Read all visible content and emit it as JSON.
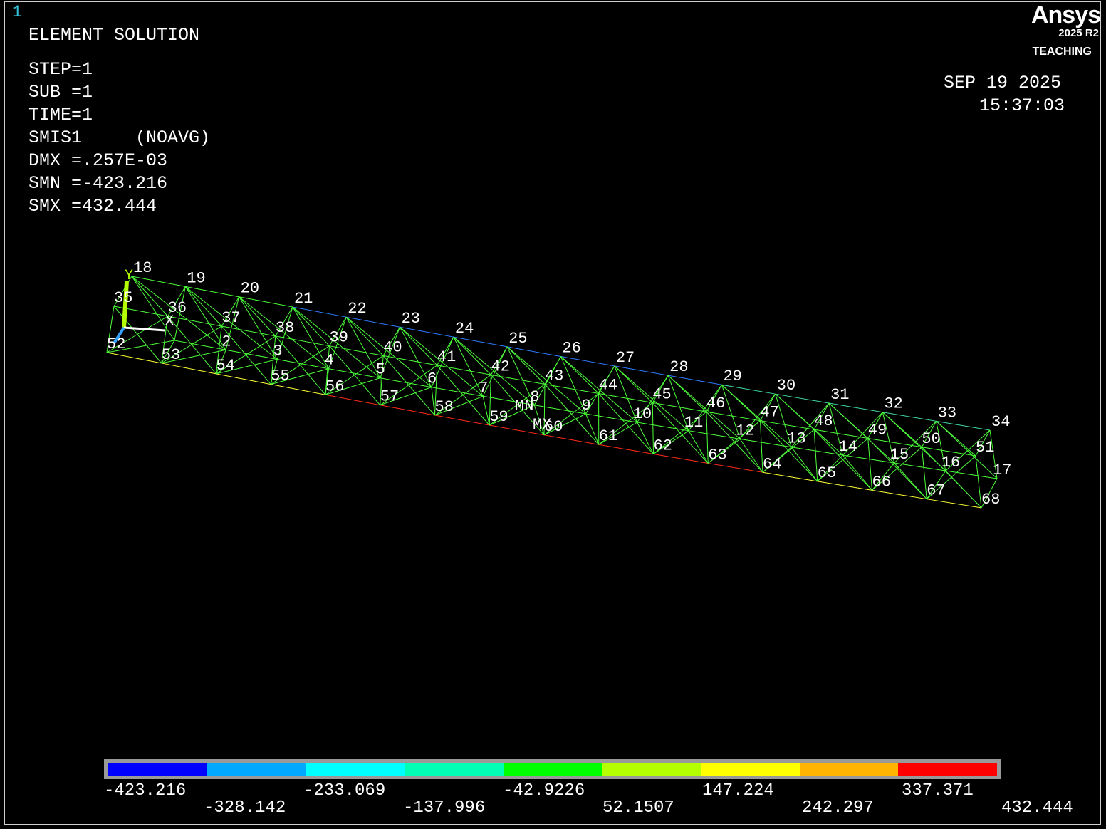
{
  "window_number": "1",
  "logo": {
    "brand": "Ansys",
    "version": "2025 R2",
    "edition": "TEACHING"
  },
  "header": {
    "title": "ELEMENT SOLUTION",
    "step": "STEP=1",
    "sub": "SUB =1",
    "time": "TIME=1",
    "item": "SMIS1     (NOAVG)",
    "dmx": "DMX =.257E-03",
    "smn": "SMN =-423.216",
    "smx": "SMX =432.444"
  },
  "datetime": {
    "date": "SEP 19 2025",
    "time": "15:37:03"
  },
  "markers": {
    "min": "MN",
    "max": "MX"
  },
  "axis_labels": {
    "x": "X",
    "y": "Y"
  },
  "legend": {
    "colors": [
      "#0000ff",
      "#00a8ff",
      "#00ffff",
      "#00ffb4",
      "#00ff00",
      "#b4ff00",
      "#ffff00",
      "#ffb400",
      "#ff0000"
    ],
    "values": [
      "-423.216",
      "-328.142",
      "-233.069",
      "-137.996",
      "-42.9226",
      "52.1507",
      "147.224",
      "242.297",
      "337.371",
      "432.444"
    ]
  },
  "nodes": {
    "top_upper": [
      "18",
      "19",
      "20",
      "21",
      "22",
      "23",
      "24",
      "25",
      "26",
      "27",
      "28",
      "29",
      "30",
      "31",
      "32",
      "33",
      "34"
    ],
    "top_lower": [
      "35",
      "36",
      "37",
      "38",
      "39",
      "40",
      "41",
      "42",
      "43",
      "44",
      "45",
      "46",
      "47",
      "48",
      "49",
      "50",
      "51"
    ],
    "mid": [
      "2",
      "3",
      "4",
      "5",
      "6",
      "7",
      "8",
      "9",
      "10",
      "11",
      "12",
      "13",
      "14",
      "15",
      "16",
      "17"
    ],
    "bottom": [
      "52",
      "53",
      "54",
      "55",
      "56",
      "57",
      "58",
      "59",
      "60",
      "61",
      "62",
      "63",
      "64",
      "65",
      "66",
      "67",
      "68"
    ]
  }
}
